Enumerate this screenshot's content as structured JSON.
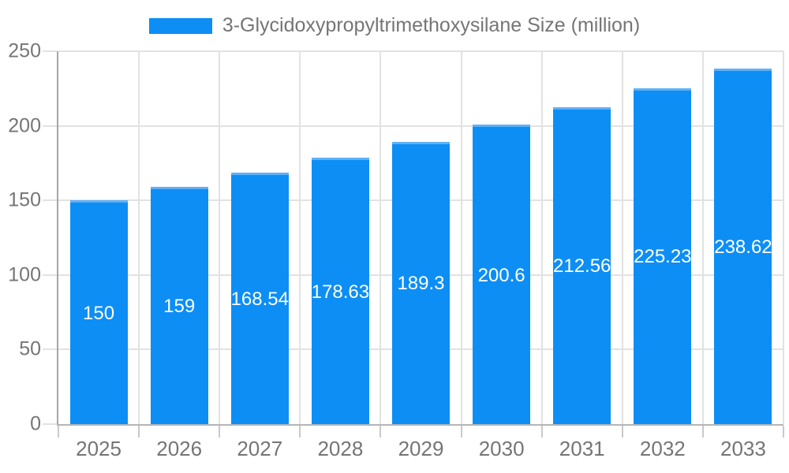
{
  "legend": {
    "label": "3-Glycidoxypropyltrimethoxysilane Size (million)"
  },
  "chart_data": {
    "type": "bar",
    "title": "3-Glycidoxypropyltrimethoxysilane Size (million)",
    "categories": [
      "2025",
      "2026",
      "2027",
      "2028",
      "2029",
      "2030",
      "2031",
      "2032",
      "2033"
    ],
    "series": [
      {
        "name": "3-Glycidoxypropyltrimethoxysilane Size (million)",
        "values": [
          150,
          159,
          168.54,
          178.63,
          189.3,
          200.6,
          212.56,
          225.23,
          238.62
        ]
      }
    ],
    "value_labels": [
      "150",
      "159",
      "168.54",
      "178.63",
      "189.3",
      "200.6",
      "212.56",
      "225.23",
      "238.62"
    ],
    "xlabel": "",
    "ylabel": "",
    "ylim": [
      0,
      250
    ],
    "yticks": [
      0,
      50,
      100,
      150,
      200,
      250
    ],
    "grid": true,
    "legend_position": "top",
    "bar_width_fraction": 0.715,
    "colors": {
      "bar": "#0d8ef5",
      "bar_edge": "#5fb0f7",
      "grid": "#e2e2e2",
      "axis_y": "#a6a6a6",
      "axis_x": "#b5b5b5",
      "xtick": "#c9c9c9",
      "text": "#757575",
      "value_label": "#ffffff",
      "background": "#ffffff"
    }
  }
}
